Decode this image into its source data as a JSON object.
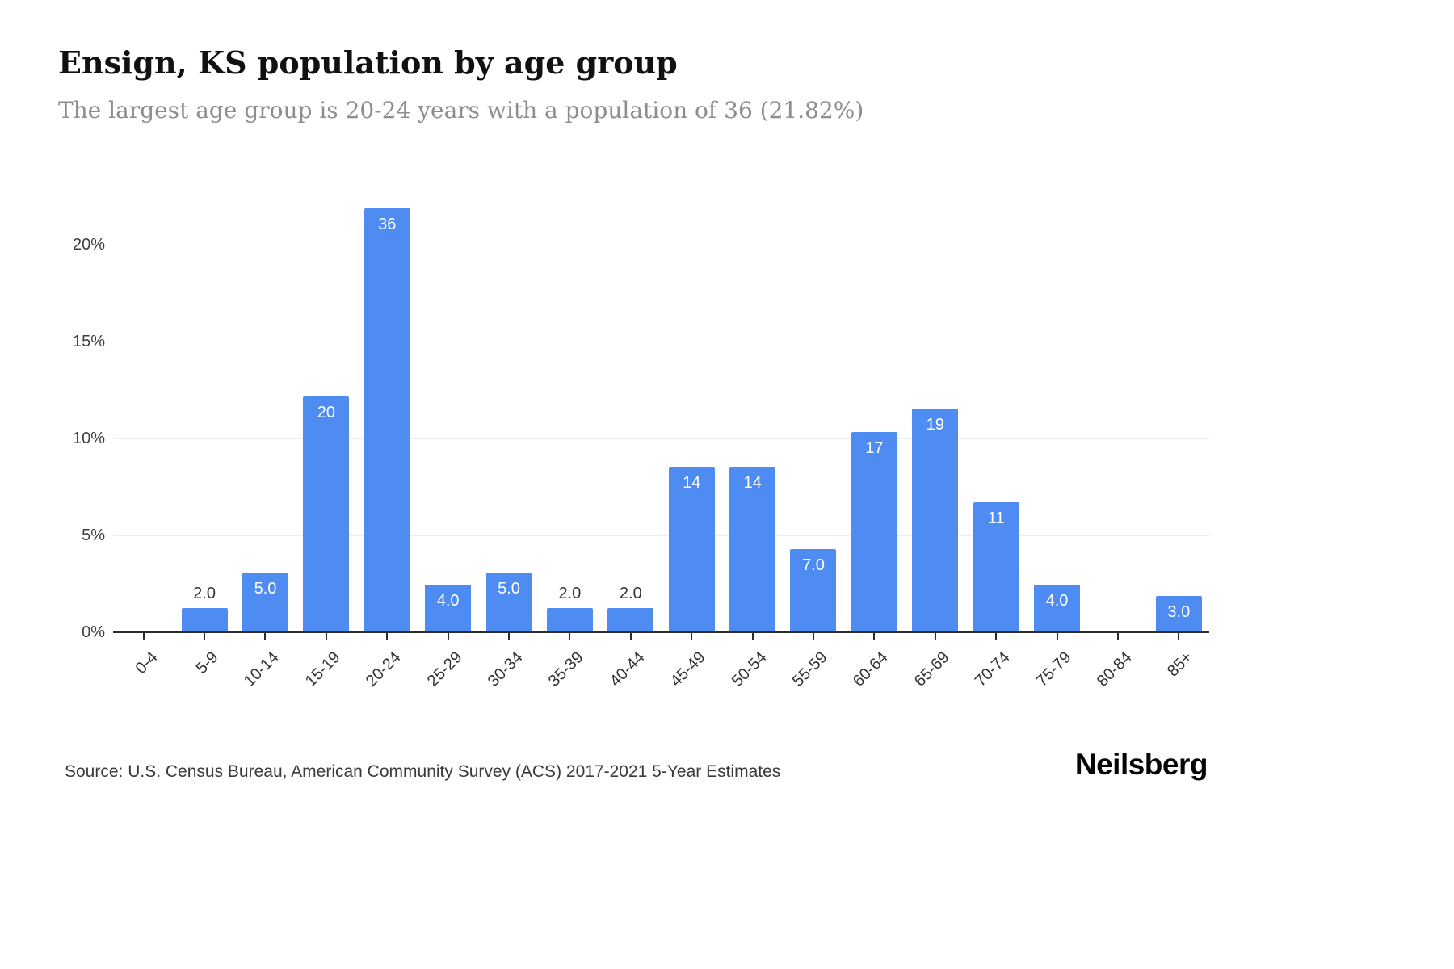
{
  "header": {
    "title": "Ensign, KS population by age group",
    "subtitle": "The largest age group is 20-24 years with a population of 36 (21.82%)"
  },
  "footer": {
    "source": "Source: U.S. Census Bureau, American Community Survey (ACS) 2017-2021 5-Year Estimates",
    "brand": "Neilsberg"
  },
  "chart_data": {
    "type": "bar",
    "title": "Ensign, KS population by age group",
    "subtitle": "The largest age group is 20-24 years with a population of 36 (21.82%)",
    "categories": [
      "0-4",
      "5-9",
      "10-14",
      "15-19",
      "20-24",
      "25-29",
      "30-34",
      "35-39",
      "40-44",
      "45-49",
      "50-54",
      "55-59",
      "60-64",
      "65-69",
      "70-74",
      "75-79",
      "80-84",
      "85+"
    ],
    "values": [
      0,
      2,
      5,
      20,
      36,
      4,
      5,
      2,
      2,
      14,
      14,
      7,
      17,
      19,
      11,
      4,
      0,
      3
    ],
    "bar_labels": [
      "",
      "2.0",
      "5.0",
      "20",
      "36",
      "4.0",
      "5.0",
      "2.0",
      "2.0",
      "14",
      "14",
      "7.0",
      "17",
      "19",
      "11",
      "4.0",
      "",
      "3.0"
    ],
    "percentages": [
      0,
      1.21,
      3.03,
      12.12,
      21.82,
      2.42,
      3.03,
      1.21,
      1.21,
      8.48,
      8.48,
      4.24,
      10.3,
      11.52,
      6.67,
      2.42,
      0,
      1.82
    ],
    "xlabel": "",
    "ylabel": "",
    "ytick_labels": [
      "0%",
      "5%",
      "10%",
      "15%",
      "20%"
    ],
    "ytick_values": [
      0,
      5,
      10,
      15,
      20
    ],
    "ylim": [
      0,
      22
    ],
    "grid": true,
    "legend": false,
    "bar_color": "#4e8cf2",
    "bar_label_inside_color": "#ffffff",
    "bar_label_outside_color": "#333333"
  }
}
